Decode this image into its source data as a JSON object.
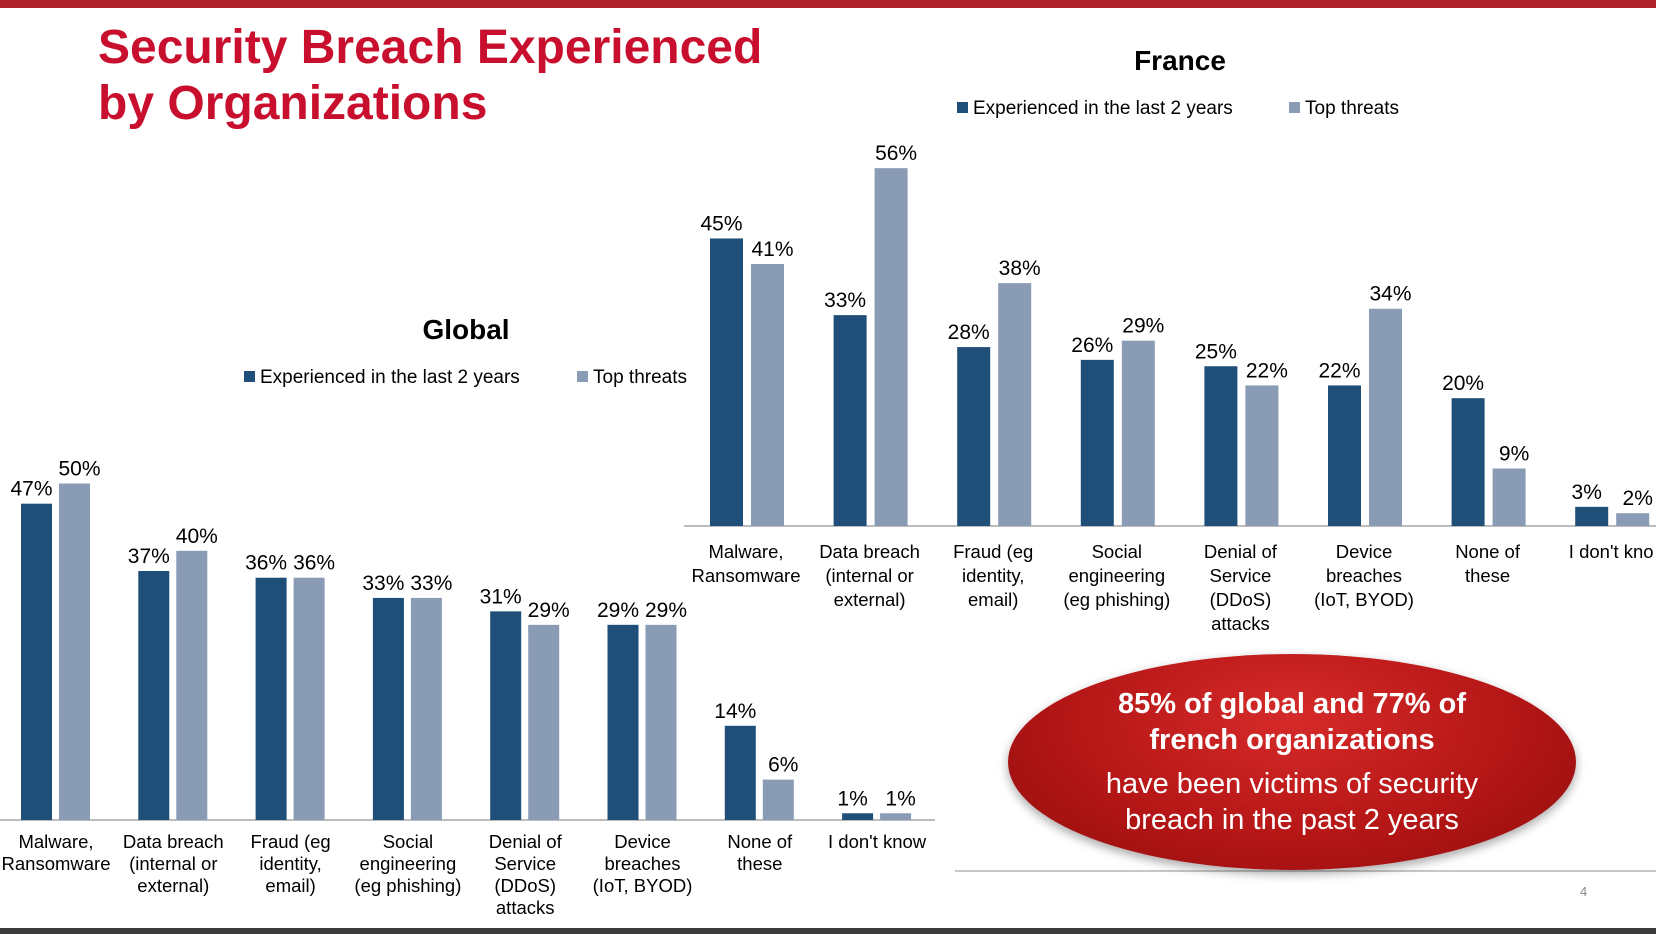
{
  "slide": {
    "title": "Security Breach Experienced by Organizations",
    "page_number": "4",
    "callout": {
      "headline": "85% of global and 77% of french organizations",
      "text": "have been victims of security breach in the past 2 years"
    },
    "colors": {
      "accent": "#c8102e",
      "brand_bar": "#b0232a",
      "experienced": "#1f4e79",
      "top_threats": "#8a9bb5",
      "callout": "#b51616"
    }
  },
  "chart_data": [
    {
      "type": "bar",
      "title": "Global",
      "categories": [
        [
          "Malware,",
          "Ransomware"
        ],
        [
          "Data breach",
          "(internal or",
          "external)"
        ],
        [
          "Fraud (eg",
          "identity,",
          "email)"
        ],
        [
          "Social",
          "engineering",
          "(eg phishing)"
        ],
        [
          "Denial of",
          "Service",
          "(DDoS)",
          "attacks"
        ],
        [
          "Device",
          "breaches",
          "(IoT, BYOD)"
        ],
        [
          "None of",
          "these"
        ],
        [
          "I don't know"
        ]
      ],
      "series": [
        {
          "name": "Experienced in the last 2 years",
          "values": [
            47,
            37,
            36,
            33,
            31,
            29,
            14,
            1
          ],
          "labels": [
            "47%",
            "37%",
            "36%",
            "33%",
            "31%",
            "29%",
            "14%",
            "1%"
          ]
        },
        {
          "name": "Top threats",
          "values": [
            50,
            40,
            36,
            33,
            29,
            29,
            6,
            1
          ],
          "labels": [
            "50%",
            "40%",
            "36%",
            "33%",
            "29%",
            "29%",
            "6%",
            "1%"
          ]
        }
      ],
      "legend": "top",
      "grid": false,
      "ylim": [
        0,
        50
      ]
    },
    {
      "type": "bar",
      "title": "France",
      "categories": [
        [
          "Malware,",
          "Ransomware"
        ],
        [
          "Data breach",
          "(internal or",
          "external)"
        ],
        [
          "Fraud (eg",
          "identity,",
          "email)"
        ],
        [
          "Social",
          "engineering",
          "(eg phishing)"
        ],
        [
          "Denial of",
          "Service",
          "(DDoS)",
          "attacks"
        ],
        [
          "Device",
          "breaches",
          "(IoT, BYOD)"
        ],
        [
          "None of",
          "these"
        ],
        [
          "I don't kno"
        ]
      ],
      "series": [
        {
          "name": "Experienced in the last 2 years",
          "values": [
            45,
            33,
            28,
            26,
            25,
            22,
            20,
            3
          ],
          "labels": [
            "45%",
            "33%",
            "28%",
            "26%",
            "25%",
            "22%",
            "20%",
            "3%"
          ]
        },
        {
          "name": "Top threats",
          "values": [
            41,
            56,
            38,
            29,
            22,
            34,
            9,
            2
          ],
          "labels": [
            "41%",
            "56%",
            "38%",
            "29%",
            "22%",
            "34%",
            "9%",
            "2%"
          ]
        }
      ],
      "legend": "top",
      "grid": false,
      "ylim": [
        0,
        56
      ]
    }
  ]
}
